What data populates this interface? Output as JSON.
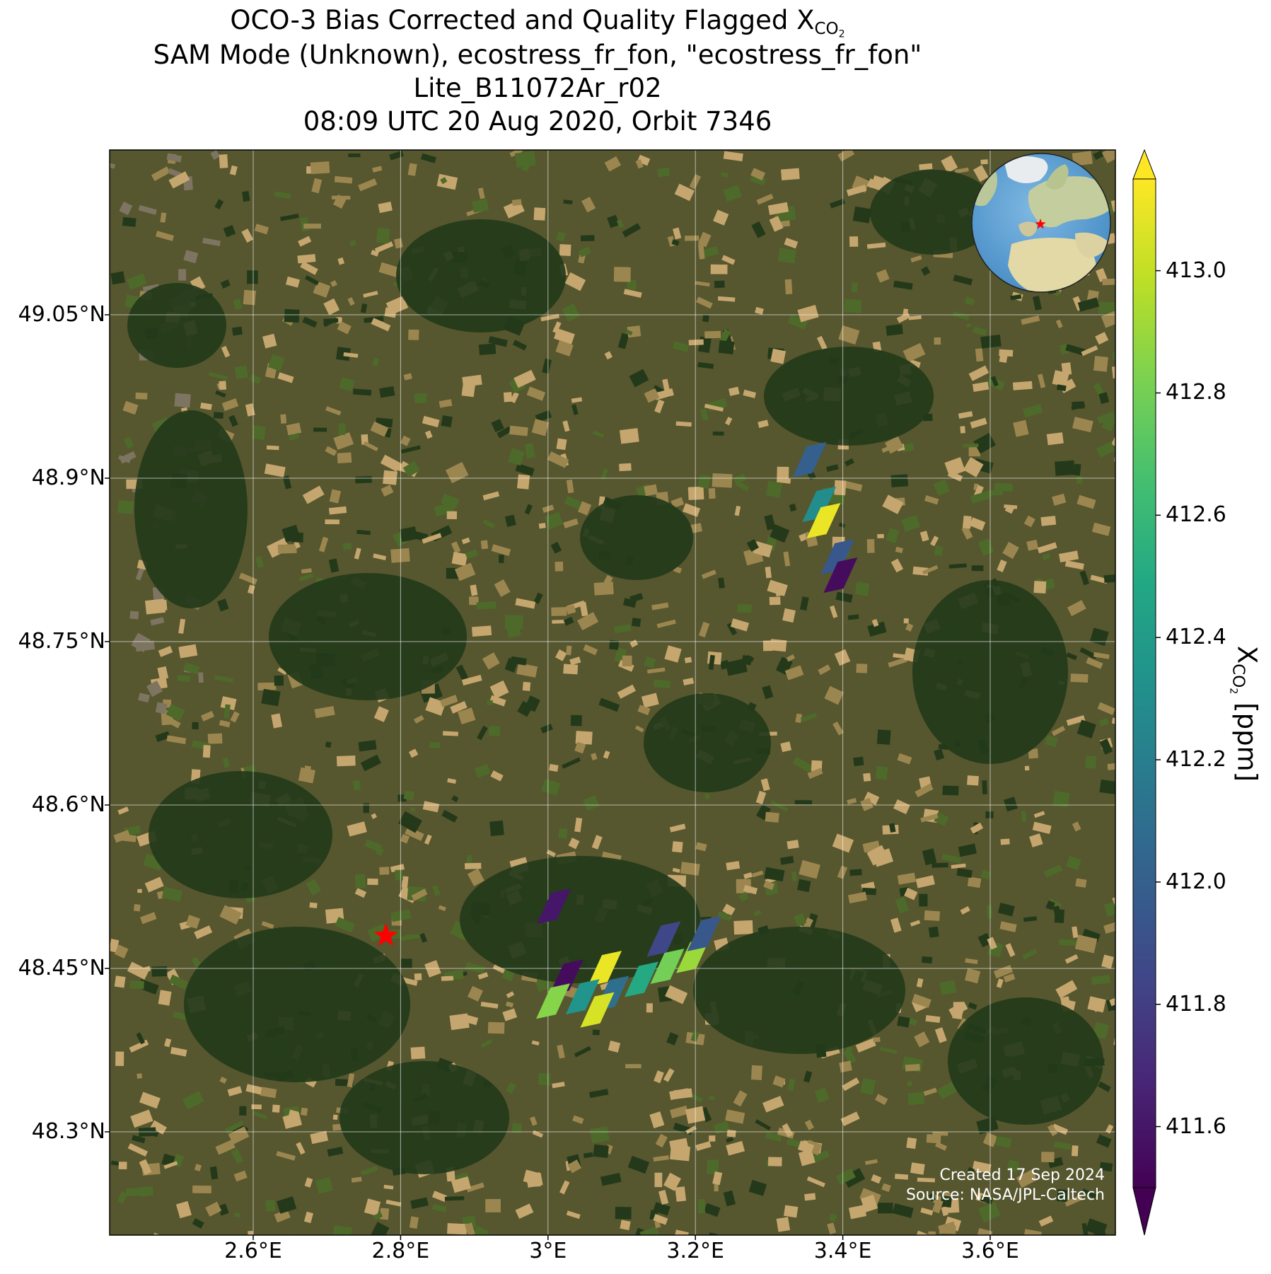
{
  "title": {
    "line1_prefix": "OCO-3 Bias Corrected and Quality Flagged X",
    "line1_sub": "CO",
    "line1_sub2": "2",
    "line2": "SAM Mode (Unknown), ecostress_fr_fon, \"ecostress_fr_fon\"",
    "line3": "Lite_B11072Ar_r02",
    "line4": "08:09 UTC 20 Aug 2020, Orbit 7346"
  },
  "axes": {
    "lat_ticks": [
      "49.05°N",
      "48.9°N",
      "48.75°N",
      "48.6°N",
      "48.45°N",
      "48.3°N"
    ],
    "lon_ticks": [
      "2.6°E",
      "2.8°E",
      "3°E",
      "3.2°E",
      "3.4°E",
      "3.6°E"
    ],
    "lat_values": [
      49.05,
      48.9,
      48.75,
      48.6,
      48.45,
      48.3
    ],
    "lon_values": [
      2.6,
      2.8,
      3.0,
      3.2,
      3.4,
      3.6
    ],
    "lon_range": [
      2.4,
      3.8
    ],
    "lat_range": [
      48.2,
      49.2
    ]
  },
  "colorbar": {
    "label_prefix": "X",
    "label_sub": "CO",
    "label_sub2": "2",
    "label_suffix": " [ppm]",
    "ticks": [
      "413.0",
      "412.8",
      "412.6",
      "412.4",
      "412.2",
      "412.0",
      "411.8",
      "411.6"
    ],
    "tick_values": [
      413.0,
      412.8,
      412.6,
      412.4,
      412.2,
      412.0,
      411.8,
      411.6
    ],
    "range": [
      411.5,
      413.15
    ],
    "colormap": "viridis",
    "extend": "both"
  },
  "target_marker": {
    "lon": 2.78,
    "lat": 48.48,
    "color": "#ff0000",
    "icon": "star-icon"
  },
  "inset_globe": {
    "icon": "globe-icon",
    "marker_color": "#ff0000"
  },
  "soundings": [
    {
      "lon": 3.353,
      "lat": 48.915,
      "value": 412.0
    },
    {
      "lon": 3.366,
      "lat": 48.874,
      "value": 412.3
    },
    {
      "lon": 3.372,
      "lat": 48.859,
      "value": 413.1
    },
    {
      "lon": 3.391,
      "lat": 48.826,
      "value": 411.95
    },
    {
      "lon": 3.395,
      "lat": 48.809,
      "value": 411.55
    },
    {
      "lon": 3.006,
      "lat": 48.505,
      "value": 411.6
    },
    {
      "lon": 3.023,
      "lat": 48.44,
      "value": 411.55
    },
    {
      "lon": 3.075,
      "lat": 48.448,
      "value": 413.1
    },
    {
      "lon": 3.005,
      "lat": 48.418,
      "value": 412.85
    },
    {
      "lon": 3.045,
      "lat": 48.422,
      "value": 412.35
    },
    {
      "lon": 3.085,
      "lat": 48.425,
      "value": 412.1
    },
    {
      "lon": 3.125,
      "lat": 48.438,
      "value": 412.5
    },
    {
      "lon": 3.16,
      "lat": 48.45,
      "value": 412.8
    },
    {
      "lon": 3.195,
      "lat": 48.46,
      "value": 412.9
    },
    {
      "lon": 3.155,
      "lat": 48.475,
      "value": 411.85
    },
    {
      "lon": 3.21,
      "lat": 48.48,
      "value": 411.95
    },
    {
      "lon": 3.065,
      "lat": 48.41,
      "value": 413.05
    }
  ],
  "credit": {
    "line1": "Created 17 Sep 2024",
    "line2": "Source: NASA/JPL-Caltech"
  },
  "colors": {
    "forest": "#23391a",
    "farmland": "#6b6a39",
    "field_light": "#c5a66e",
    "field_mid": "#9c8650",
    "urban": "#7d7561",
    "ocean": "#5b9ed4",
    "land": "#d8dcc0",
    "marker": "#ff0000"
  }
}
